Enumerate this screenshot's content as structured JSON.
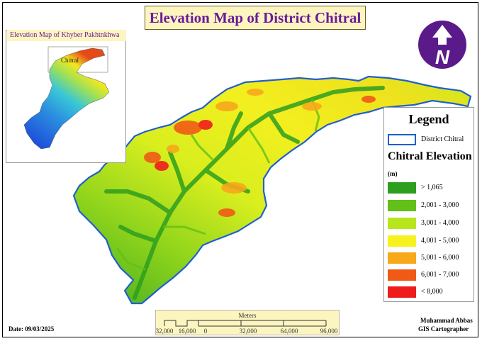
{
  "title": "Elevation Map of District Chitral",
  "inset": {
    "title": "Elevation Map of Khyber Pakhtnkhwa",
    "label": "Chitral"
  },
  "north_arrow": {
    "letter": "N",
    "icon": "north-arrow-icon",
    "color": "#5b1a8a"
  },
  "legend": {
    "title": "Legend",
    "district_label": "District Chitral",
    "elevation_title": "Chitral Elevation",
    "unit": "(m)",
    "classes": [
      {
        "label": "> 1,065",
        "color": "#2e9e1f"
      },
      {
        "label": "2,001 - 3,000",
        "color": "#62c018"
      },
      {
        "label": "3,001 - 4,000",
        "color": "#b8e61c"
      },
      {
        "label": "4,001 - 5,000",
        "color": "#f7f21e"
      },
      {
        "label": "5,001 - 6,000",
        "color": "#f7a81b"
      },
      {
        "label": "6,001 - 7,000",
        "color": "#f05a16"
      },
      {
        "label": "< 8,000",
        "color": "#ef1c1c"
      }
    ]
  },
  "scale_bar": {
    "title": "Meters",
    "ticks": [
      "32,000",
      "16,000",
      "0",
      "32,000",
      "64,000",
      "96,000"
    ]
  },
  "date": "Date: 09/03/2025",
  "author": {
    "name": "Muhammad Abbas",
    "role": "GIS Cartographer"
  },
  "colors": {
    "boundary": "#1f5fd0",
    "title_text": "#6a1b9a",
    "title_bg": "#fdf5c0"
  }
}
